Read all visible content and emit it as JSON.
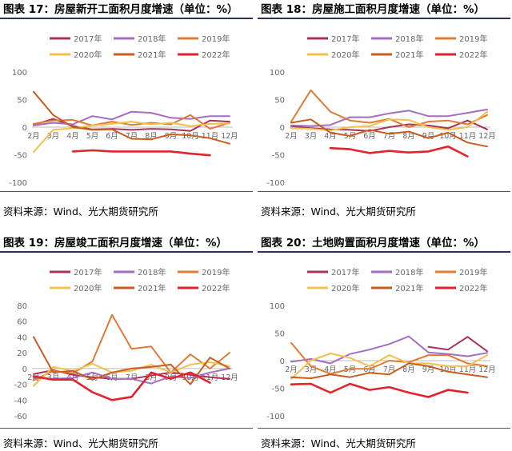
{
  "chart_data": [
    {
      "type": "line",
      "title": "图表 17：房屋新开工面积月度增速（单位：%）",
      "source": "资料来源：Wind、光大期货研究所",
      "ylim": [
        -100,
        100
      ],
      "yticks": [
        -100,
        -50,
        0,
        50,
        100
      ],
      "categories": [
        "2月",
        "3月",
        "4月",
        "5月",
        "6月",
        "7月",
        "8月",
        "9月",
        "10月",
        "11月",
        "12月"
      ],
      "legend": [
        "2017年",
        "2018年",
        "2019年",
        "2020年",
        "2021年",
        "2022年"
      ],
      "series": [
        {
          "name": "2017年",
          "color": "#a83256",
          "values": [
            4,
            15,
            2,
            -4,
            -3,
            -5,
            -3,
            -4,
            -7,
            12,
            10
          ]
        },
        {
          "name": "2018年",
          "color": "#a56cc1",
          "values": [
            3,
            8,
            5,
            20,
            14,
            28,
            26,
            17,
            15,
            20,
            20
          ]
        },
        {
          "name": "2019年",
          "color": "#e07a34",
          "values": [
            6,
            12,
            13,
            3,
            10,
            4,
            8,
            5,
            22,
            -3,
            8
          ]
        },
        {
          "name": "2020年",
          "color": "#f4bf4f",
          "values": [
            -45,
            -5,
            -2,
            3,
            6,
            10,
            5,
            8,
            2,
            6,
            7
          ]
        },
        {
          "name": "2021年",
          "color": "#c75d1e",
          "values": [
            64,
            22,
            0,
            -5,
            -4,
            -21,
            -22,
            -13,
            -15,
            -20,
            -30
          ]
        },
        {
          "name": "2022年",
          "color": "#e3232c",
          "values": [
            null,
            null,
            -44,
            -42,
            -44,
            -44,
            -44,
            -44,
            -48,
            -51,
            null
          ]
        }
      ]
    },
    {
      "type": "line",
      "title": "图表 18：房屋施工面积月度增速（单位：%）",
      "source": "资料来源：Wind、光大期货研究所",
      "ylim": [
        -100,
        100
      ],
      "yticks": [
        -100,
        -50,
        0,
        50,
        100
      ],
      "categories": [
        "2月",
        "3月",
        "4月",
        "5月",
        "6月",
        "7月",
        "8月",
        "9月",
        "10月",
        "11月",
        "12月"
      ],
      "legend": [
        "2017年",
        "2018年",
        "2019年",
        "2020年",
        "2021年",
        "2022年"
      ],
      "series": [
        {
          "name": "2017年",
          "color": "#a83256",
          "values": [
            2,
            -2,
            -4,
            -5,
            -7,
            0,
            5,
            3,
            -2,
            12,
            -4
          ]
        },
        {
          "name": "2018年",
          "color": "#a56cc1",
          "values": [
            3,
            2,
            4,
            18,
            18,
            25,
            30,
            20,
            20,
            26,
            32
          ]
        },
        {
          "name": "2019年",
          "color": "#e07a34",
          "values": [
            10,
            67,
            28,
            12,
            8,
            15,
            0,
            10,
            12,
            5,
            22
          ]
        },
        {
          "name": "2020年",
          "color": "#f4bf4f",
          "values": [
            -2,
            -3,
            -6,
            0,
            2,
            14,
            13,
            0,
            -5,
            0,
            28
          ]
        },
        {
          "name": "2021年",
          "color": "#c75d1e",
          "values": [
            8,
            14,
            -10,
            -16,
            -5,
            -12,
            -8,
            -20,
            -10,
            -28,
            -35
          ]
        },
        {
          "name": "2022年",
          "color": "#e3232c",
          "values": [
            null,
            null,
            -38,
            -40,
            -47,
            -43,
            -46,
            -44,
            -35,
            -53,
            null
          ]
        }
      ]
    },
    {
      "type": "line",
      "title": "图表 19：房屋竣工面积月度增速（单位：%）",
      "source": "资料来源：Wind、光大期货研究所",
      "ylim": [
        -60,
        80
      ],
      "yticks": [
        -60,
        -40,
        -20,
        0,
        20,
        40,
        60,
        80
      ],
      "categories": [
        "2月",
        "3月",
        "4月",
        "5月",
        "6月",
        "7月",
        "8月",
        "9月",
        "10月",
        "11月",
        "12月"
      ],
      "legend": [
        "2017年",
        "2018年",
        "2019年",
        "2020年",
        "2021年",
        "2022年"
      ],
      "series": [
        {
          "name": "2017年",
          "color": "#a83256",
          "values": [
            -7,
            -2,
            -8,
            -11,
            -13,
            -13,
            -9,
            -5,
            -8,
            -11,
            -13
          ]
        },
        {
          "name": "2018年",
          "color": "#a56cc1",
          "values": [
            -12,
            -13,
            -12,
            -5,
            -13,
            -13,
            -19,
            -10,
            -12,
            -5,
            0
          ]
        },
        {
          "name": "2019年",
          "color": "#e07a34",
          "values": [
            -15,
            -3,
            -6,
            9,
            68,
            25,
            28,
            -5,
            18,
            0,
            20
          ]
        },
        {
          "name": "2020年",
          "color": "#f4bf4f",
          "values": [
            -22,
            2,
            -3,
            6,
            -5,
            -3,
            5,
            -5,
            5,
            8,
            3
          ]
        },
        {
          "name": "2021年",
          "color": "#c75d1e",
          "values": [
            40,
            -5,
            -3,
            -14,
            -5,
            0,
            2,
            5,
            -20,
            14,
            0
          ]
        },
        {
          "name": "2022年",
          "color": "#e3232c",
          "values": [
            -10,
            -14,
            -14,
            -30,
            -40,
            -36,
            -5,
            -13,
            -5,
            -18,
            null
          ]
        }
      ]
    },
    {
      "type": "line",
      "title": "图表 20：土地购置面积月度增速（单位：%）",
      "source": "资料来源：Wind、光大期货研究所",
      "ylim": [
        -100,
        100
      ],
      "yticks": [
        -100,
        -50,
        0,
        50,
        100
      ],
      "categories": [
        "2月",
        "3月",
        "4月",
        "5月",
        "6月",
        "7月",
        "8月",
        "9月",
        "10月",
        "11月",
        "12月"
      ],
      "legend": [
        "2017年",
        "2018年",
        "2019年",
        "2020年",
        "2021年",
        "2022年"
      ],
      "series": [
        {
          "name": "2017年",
          "color": "#a83256",
          "values": [
            null,
            null,
            null,
            null,
            null,
            null,
            null,
            25,
            20,
            43,
            17
          ]
        },
        {
          "name": "2018年",
          "color": "#a56cc1",
          "values": [
            -2,
            3,
            -5,
            12,
            20,
            30,
            44,
            15,
            12,
            8,
            14
          ]
        },
        {
          "name": "2019年",
          "color": "#e07a34",
          "values": [
            32,
            -10,
            -24,
            -15,
            -15,
            0,
            -3,
            10,
            10,
            -5,
            -10
          ]
        },
        {
          "name": "2020年",
          "color": "#f4bf4f",
          "values": [
            -33,
            0,
            13,
            5,
            -10,
            10,
            -5,
            -5,
            -10,
            -10,
            10
          ]
        },
        {
          "name": "2021年",
          "color": "#c75d1e",
          "values": [
            -30,
            -32,
            -25,
            -30,
            -22,
            -25,
            -5,
            -10,
            -20,
            -25,
            -30
          ]
        },
        {
          "name": "2022年",
          "color": "#e3232c",
          "values": [
            -43,
            -42,
            -58,
            -42,
            -53,
            -48,
            -58,
            -66,
            -53,
            -58,
            null
          ]
        }
      ]
    }
  ]
}
